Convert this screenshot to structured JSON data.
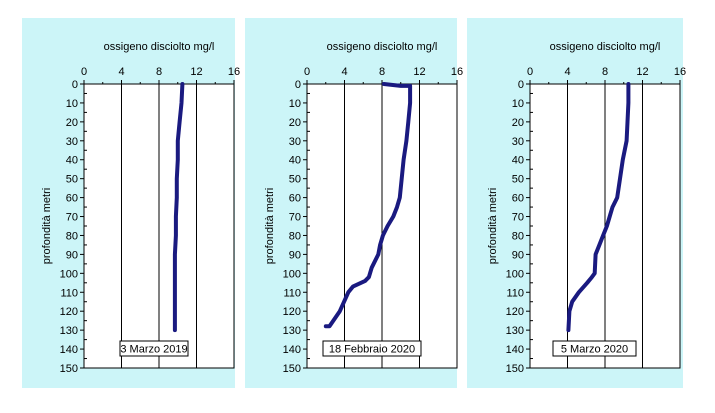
{
  "chart_data": [
    {
      "type": "line",
      "title": "ossigeno disciolto mg/l",
      "ylabel": "profondità metri",
      "annotation": "3 Marzo 2019",
      "xlim": [
        0,
        16
      ],
      "ylim": [
        0,
        150
      ],
      "y_inverted": true,
      "x_axis_position": "top",
      "x_ticks": [
        "0",
        "4",
        "8",
        "12",
        "16"
      ],
      "y_ticks": [
        "0",
        "10",
        "20",
        "30",
        "40",
        "50",
        "60",
        "70",
        "80",
        "90",
        "100",
        "110",
        "120",
        "130",
        "140",
        "150"
      ],
      "grid": "vertical",
      "line_color": "#1a1a80",
      "background_color": "#ccf5f8",
      "series": [
        {
          "x": [
            10.5,
            10.4,
            10.2,
            10.0,
            10.0,
            9.9,
            9.9,
            9.8,
            9.8,
            9.7,
            9.7,
            9.7,
            9.7,
            9.7
          ],
          "y": [
            0,
            10,
            20,
            30,
            40,
            50,
            60,
            70,
            80,
            90,
            100,
            110,
            120,
            130
          ]
        }
      ]
    },
    {
      "type": "line",
      "title": "ossigeno disciolto mg/l",
      "ylabel": "profondità metri",
      "annotation": "18 Febbraio 2020",
      "xlim": [
        0,
        16
      ],
      "ylim": [
        0,
        150
      ],
      "y_inverted": true,
      "x_axis_position": "top",
      "x_ticks": [
        "0",
        "4",
        "8",
        "12",
        "16"
      ],
      "y_ticks": [
        "0",
        "10",
        "20",
        "30",
        "40",
        "50",
        "60",
        "70",
        "80",
        "90",
        "100",
        "110",
        "120",
        "130",
        "140",
        "150"
      ],
      "grid": "vertical",
      "line_color": "#1a1a80",
      "background_color": "#ccf5f8",
      "series": [
        {
          "x": [
            8.2,
            10.0,
            11.0,
            11.0,
            10.8,
            10.6,
            10.3,
            10.1,
            9.9,
            9.6,
            9.2,
            8.6,
            8.1,
            7.8,
            7.6,
            6.9,
            6.6,
            6.2,
            4.9,
            4.4,
            3.5,
            2.4,
            2.0
          ],
          "y": [
            0,
            1,
            1,
            10,
            20,
            30,
            40,
            50,
            60,
            65,
            70,
            75,
            80,
            85,
            90,
            97,
            102,
            104,
            107,
            110,
            120,
            128,
            128
          ]
        }
      ]
    },
    {
      "type": "line",
      "title": "ossigeno disciolto mg/l",
      "ylabel": "profondità metri",
      "annotation": "5 Marzo 2020",
      "xlim": [
        0,
        16
      ],
      "ylim": [
        0,
        150
      ],
      "y_inverted": true,
      "x_axis_position": "top",
      "x_ticks": [
        "0",
        "4",
        "8",
        "12",
        "16"
      ],
      "y_ticks": [
        "0",
        "10",
        "20",
        "30",
        "40",
        "50",
        "60",
        "70",
        "80",
        "90",
        "100",
        "110",
        "120",
        "130",
        "140",
        "150"
      ],
      "grid": "vertical",
      "line_color": "#1a1a80",
      "background_color": "#ccf5f8",
      "series": [
        {
          "x": [
            10.5,
            10.5,
            10.4,
            10.3,
            9.9,
            9.6,
            9.3,
            8.8,
            8.5,
            8.2,
            7.8,
            7.4,
            7.0,
            6.9,
            6.6,
            6.1,
            5.2,
            4.5,
            4.2,
            4.1
          ],
          "y": [
            0,
            10,
            20,
            30,
            40,
            50,
            60,
            65,
            70,
            75,
            80,
            85,
            90,
            100,
            102,
            105,
            110,
            115,
            120,
            130
          ]
        }
      ]
    }
  ]
}
